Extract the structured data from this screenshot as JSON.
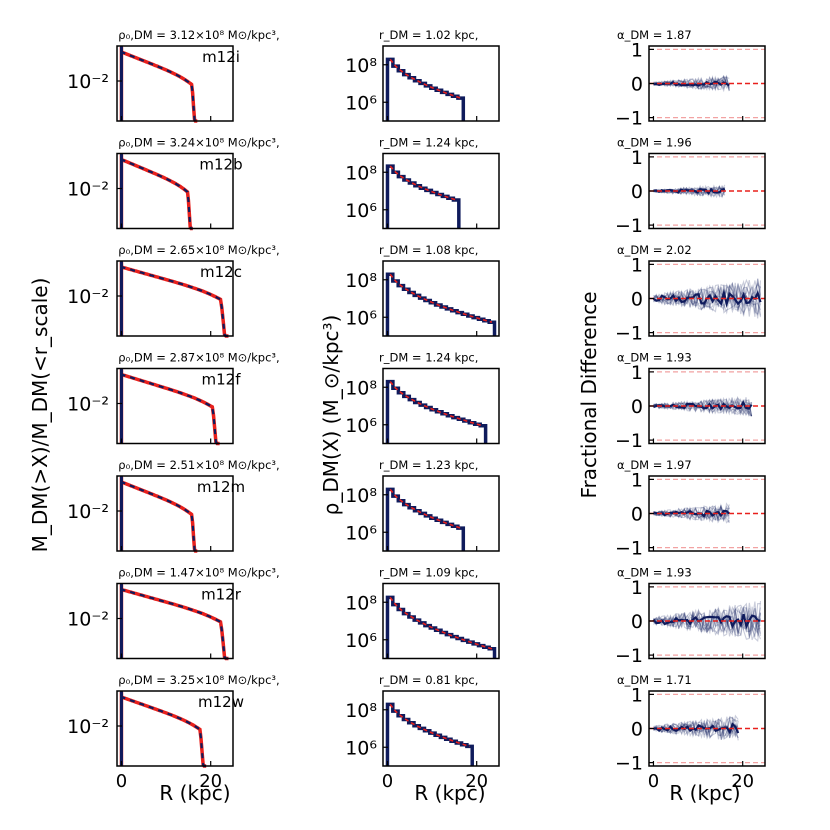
{
  "figure": {
    "ylabel_col1": "M_DM(>X)/M_DM(<r_scale)",
    "ylabel_col2": "ρ_DM(X) (M_⊙/kpc³)",
    "ylabel_col3": "Fractional Difference",
    "xlabel": "R (kpc)",
    "x_tick_labels": [
      "0",
      "20"
    ],
    "col1_tick_label": "10⁻²",
    "col2_tick_labels": [
      "10⁸",
      "10⁶"
    ],
    "col3_tick_labels": [
      "1",
      "0",
      "−1"
    ],
    "colors": {
      "data": "#0f1b5c",
      "model": "#e8201c",
      "ref": "#f2a2a2"
    }
  },
  "chart_data": [
    {
      "type": "line",
      "halo": "m12i",
      "rho_label": "ρ₀,DM = 3.12×10⁸ M⊙/kpc³,",
      "rdm_label": "r_DM = 1.02 kpc,",
      "alpha_label": "α_DM = 1.87",
      "rho0": 312000000.0,
      "r_dm": 1.02,
      "alpha_dm": 1.87,
      "x_max": 17,
      "xlim": [
        -1,
        25
      ],
      "cumulative_ylim_log": [
        -2.8,
        -1.3
      ],
      "density_ylim": [
        100000.0,
        1000000000.0
      ],
      "density_range": [
        600000000.0,
        1500000.0
      ],
      "fracdiff_ylim": [
        -1.1,
        1.1
      ],
      "fracdiff_amp": 0.12
    },
    {
      "type": "line",
      "halo": "m12b",
      "rho_label": "ρ₀,DM = 3.24×10⁸ M⊙/kpc³,",
      "rdm_label": "r_DM = 1.24 kpc,",
      "alpha_label": "α_DM = 1.96",
      "rho0": 324000000.0,
      "r_dm": 1.24,
      "alpha_dm": 1.96,
      "x_max": 16,
      "xlim": [
        -1,
        25
      ],
      "cumulative_ylim_log": [
        -2.8,
        -1.3
      ],
      "density_ylim": [
        100000.0,
        1000000000.0
      ],
      "density_range": [
        600000000.0,
        3000000.0
      ],
      "fracdiff_ylim": [
        -1.1,
        1.1
      ],
      "fracdiff_amp": 0.1
    },
    {
      "type": "line",
      "halo": "m12c",
      "rho_label": "ρ₀,DM = 2.65×10⁸ M⊙/kpc³,",
      "rdm_label": "r_DM = 1.08 kpc,",
      "alpha_label": "α_DM = 2.02",
      "rho0": 265000000.0,
      "r_dm": 1.08,
      "alpha_dm": 2.02,
      "x_max": 24,
      "xlim": [
        -1,
        25
      ],
      "cumulative_ylim_log": [
        -2.8,
        -1.3
      ],
      "density_ylim": [
        100000.0,
        1000000000.0
      ],
      "density_range": [
        600000000.0,
        500000.0
      ],
      "fracdiff_ylim": [
        -1.1,
        1.1
      ],
      "fracdiff_amp": 0.3
    },
    {
      "type": "line",
      "halo": "m12f",
      "rho_label": "ρ₀,DM = 2.87×10⁸ M⊙/kpc³,",
      "rdm_label": "r_DM = 1.24 kpc,",
      "alpha_label": "α_DM = 1.93",
      "rho0": 287000000.0,
      "r_dm": 1.24,
      "alpha_dm": 1.93,
      "x_max": 22,
      "xlim": [
        -1,
        25
      ],
      "cumulative_ylim_log": [
        -2.8,
        -1.3
      ],
      "density_ylim": [
        100000.0,
        1000000000.0
      ],
      "density_range": [
        600000000.0,
        800000.0
      ],
      "fracdiff_ylim": [
        -1.1,
        1.1
      ],
      "fracdiff_amp": 0.15
    },
    {
      "type": "line",
      "halo": "m12m",
      "rho_label": "ρ₀,DM = 2.51×10⁸ M⊙/kpc³,",
      "rdm_label": "r_DM = 1.23 kpc,",
      "alpha_label": "α_DM = 1.97",
      "rho0": 251000000.0,
      "r_dm": 1.23,
      "alpha_dm": 1.97,
      "x_max": 17,
      "xlim": [
        -1,
        25
      ],
      "cumulative_ylim_log": [
        -2.8,
        -1.3
      ],
      "density_ylim": [
        100000.0,
        1000000000.0
      ],
      "density_range": [
        600000000.0,
        1500000.0
      ],
      "fracdiff_ylim": [
        -1.1,
        1.1
      ],
      "fracdiff_amp": 0.15
    },
    {
      "type": "line",
      "halo": "m12r",
      "rho_label": "ρ₀,DM = 1.47×10⁸ M⊙/kpc³,",
      "rdm_label": "r_DM = 1.09 kpc,",
      "alpha_label": "α_DM = 1.93",
      "rho0": 147000000.0,
      "r_dm": 1.09,
      "alpha_dm": 1.93,
      "x_max": 24,
      "xlim": [
        -1,
        25
      ],
      "cumulative_ylim_log": [
        -2.8,
        -1.3
      ],
      "density_ylim": [
        100000.0,
        1000000000.0
      ],
      "density_range": [
        600000000.0,
        300000.0
      ],
      "fracdiff_ylim": [
        -1.1,
        1.1
      ],
      "fracdiff_amp": 0.3
    },
    {
      "type": "line",
      "halo": "m12w",
      "rho_label": "ρ₀,DM = 3.25×10⁸ M⊙/kpc³,",
      "rdm_label": "r_DM = 0.81 kpc,",
      "alpha_label": "α_DM = 1.71",
      "rho0": 325000000.0,
      "r_dm": 0.81,
      "alpha_dm": 1.71,
      "x_max": 19,
      "xlim": [
        -1,
        25
      ],
      "cumulative_ylim_log": [
        -2.8,
        -1.3
      ],
      "density_ylim": [
        100000.0,
        1000000000.0
      ],
      "density_range": [
        600000000.0,
        1000000.0
      ],
      "fracdiff_ylim": [
        -1.1,
        1.1
      ],
      "fracdiff_amp": 0.2
    }
  ]
}
